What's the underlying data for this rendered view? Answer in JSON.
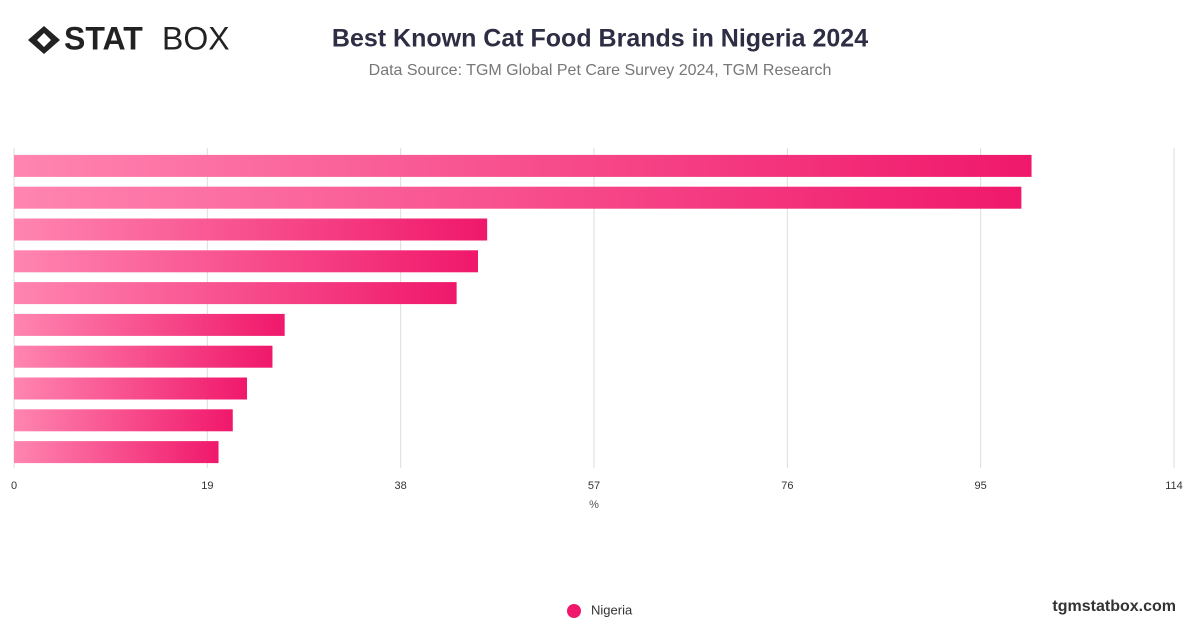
{
  "logo": {
    "bold": "STAT",
    "light": "BOX"
  },
  "footer": "tgmstatbox.com",
  "chart_data": {
    "type": "hbar",
    "title": "Best Known Cat Food Brands in Nigeria 2024",
    "subtitle": "Data Source: TGM Global Pet Care Survey 2024, TGM Research",
    "x_label": "%",
    "categories": [
      null,
      null,
      null,
      null,
      null,
      null,
      null,
      null,
      null,
      null
    ],
    "series": [
      {
        "name": "Nigeria",
        "color": "#f0186b",
        "values": [
          100,
          99,
          46.5,
          45.6,
          43.5,
          26.6,
          25.4,
          22.9,
          21.5,
          20.1
        ]
      }
    ],
    "xlim": [
      0,
      114
    ],
    "xticks": [
      0,
      19,
      38,
      57,
      76,
      95,
      114
    ],
    "grid": true
  }
}
